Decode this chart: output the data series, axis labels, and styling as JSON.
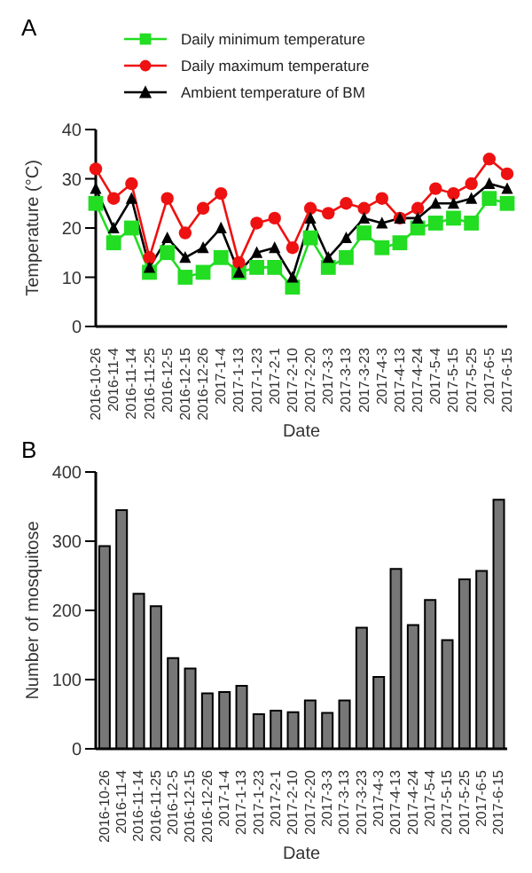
{
  "chart_data": [
    {
      "type": "line",
      "title": "A",
      "xlabel": "Date",
      "ylabel": "Temperature (°C)",
      "categories": [
        "2016-10-26",
        "2016-11-4",
        "2016-11-14",
        "2016-11-25",
        "2016-12-5",
        "2016-12-15",
        "2016-12-26",
        "2017-1-4",
        "2017-1-13",
        "2017-1-23",
        "2017-2-1",
        "2017-2-10",
        "2017-2-20",
        "2017-3-3",
        "2017-3-13",
        "2017-3-23",
        "2017-4-3",
        "2017-4-13",
        "2017-4-24",
        "2017-5-4",
        "2017-5-15",
        "2017-5-25",
        "2017-6-5",
        "2017-6-15"
      ],
      "series": [
        {
          "name": "Daily minimum  temperature",
          "color": "#22dd22",
          "marker": "square",
          "values": [
            25,
            17,
            20,
            11,
            15,
            10,
            11,
            14,
            11,
            12,
            12,
            8,
            18,
            12,
            14,
            19,
            16,
            17,
            20,
            21,
            22,
            21,
            26,
            25
          ]
        },
        {
          "name": "Daily maximum temperature",
          "color": "#ee1111",
          "marker": "circle",
          "values": [
            32,
            26,
            29,
            14,
            26,
            19,
            24,
            27,
            13,
            21,
            22,
            16,
            24,
            23,
            25,
            24,
            26,
            22,
            24,
            28,
            27,
            29,
            34,
            31
          ]
        },
        {
          "name": "Ambient temperature of BM",
          "color": "#000000",
          "marker": "triangle",
          "values": [
            28,
            20,
            26,
            12,
            18,
            14,
            16,
            20,
            11,
            15,
            16,
            10,
            22,
            14,
            18,
            22,
            21,
            22,
            22,
            25,
            25,
            26,
            29,
            28
          ]
        }
      ],
      "ylim": [
        0,
        40
      ],
      "yticks": [
        0,
        10,
        20,
        30,
        40
      ],
      "grid": false,
      "legend": "top"
    },
    {
      "type": "bar",
      "title": "B",
      "xlabel": "Date",
      "ylabel": "Number of mosquitose",
      "categories": [
        "2016-10-26",
        "2016-11-4",
        "2016-11-14",
        "2016-11-25",
        "2016-12-5",
        "2016-12-15",
        "2016-12-26",
        "2017-1-4",
        "2017-1-13",
        "2017-1-23",
        "2017-2-1",
        "2017-2-10",
        "2017-2-20",
        "2017-3-3",
        "2017-3-13",
        "2017-3-23",
        "2017-4-3",
        "2017-4-13",
        "2017-4-24",
        "2017-5-4",
        "2017-5-15",
        "2017-5-25",
        "2017-6-5",
        "2017-6-15"
      ],
      "values": [
        293,
        345,
        224,
        206,
        131,
        116,
        80,
        82,
        91,
        50,
        55,
        53,
        70,
        52,
        70,
        175,
        104,
        260,
        179,
        215,
        157,
        245,
        257,
        360
      ],
      "color": "#777777",
      "ylim": [
        0,
        400
      ],
      "yticks": [
        0,
        100,
        200,
        300,
        400
      ],
      "grid": false
    }
  ]
}
